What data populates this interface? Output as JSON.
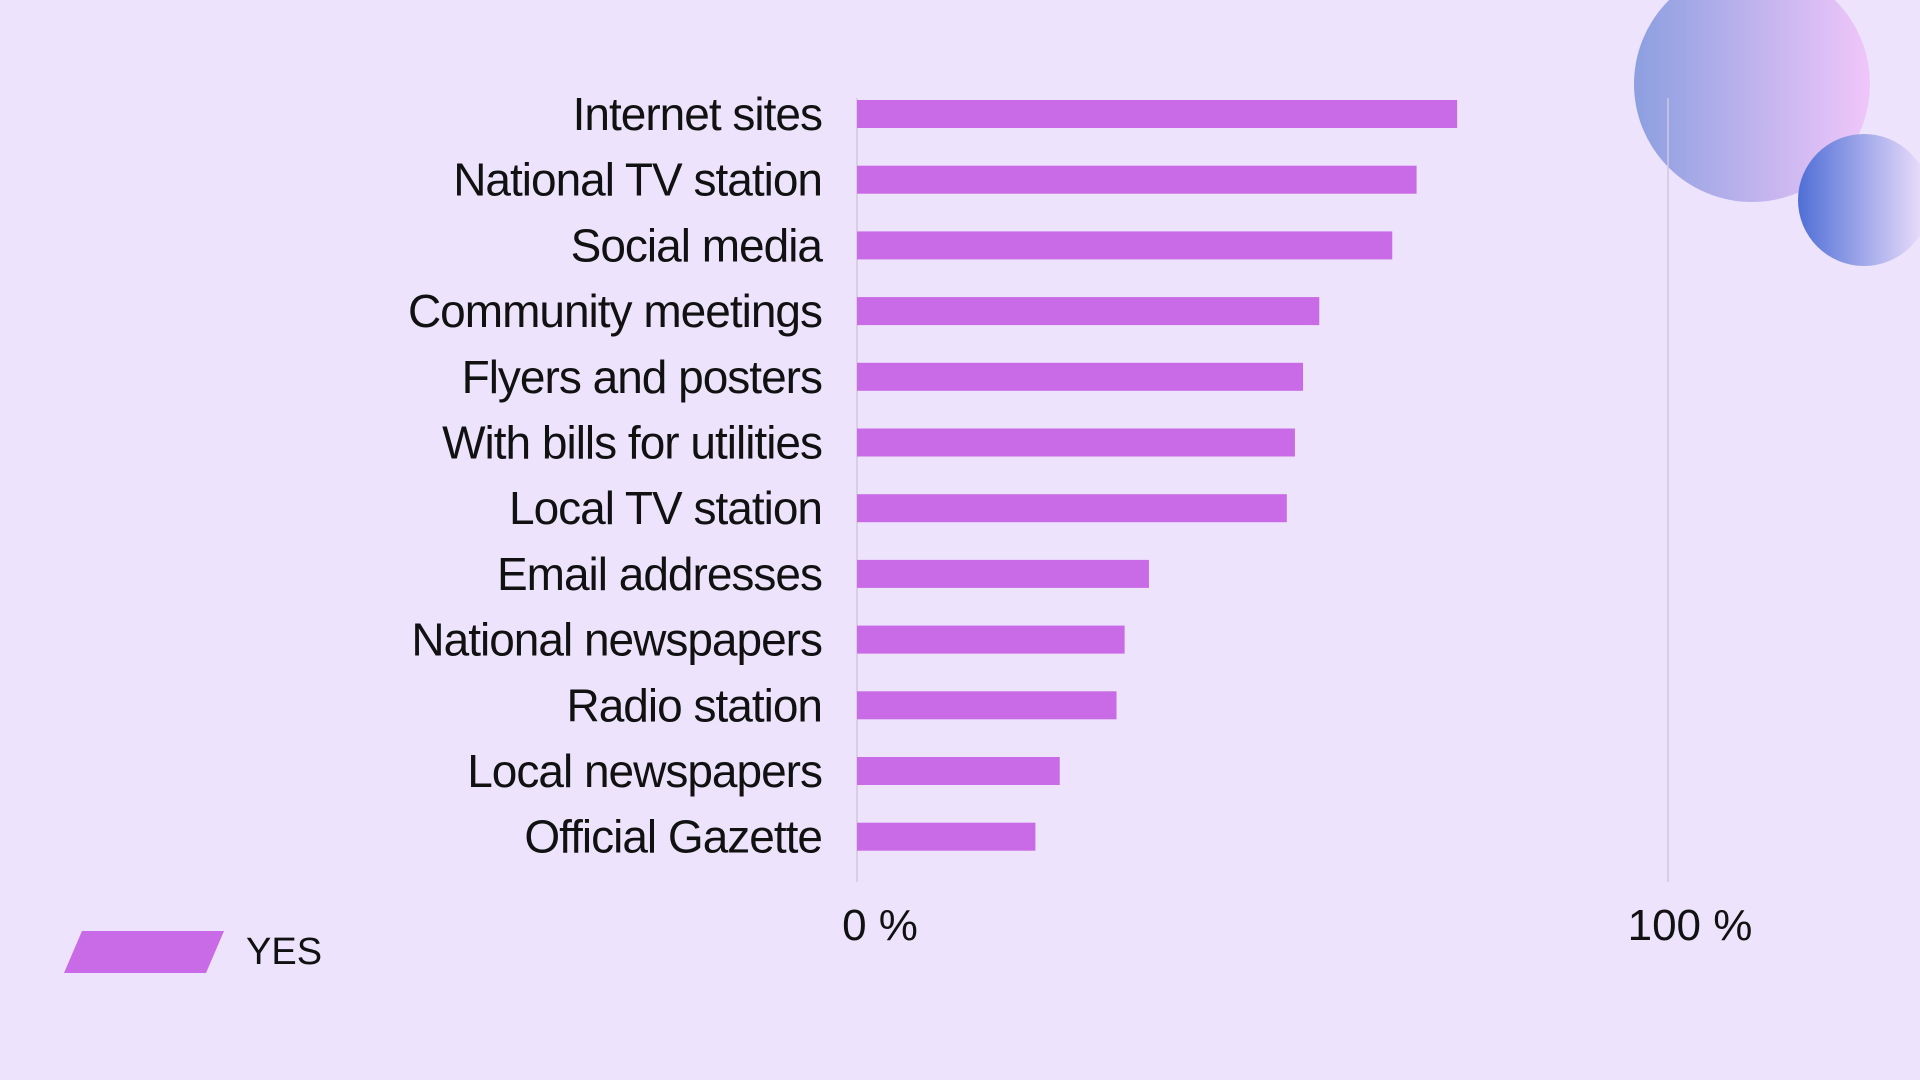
{
  "chart_data": {
    "type": "bar",
    "orientation": "horizontal",
    "categories": [
      "Internet sites",
      "National TV station",
      "Social media",
      "Community meetings",
      "Flyers and posters",
      "With bills for utilities",
      "Local TV station",
      "Email addresses",
      "National newspapers",
      "Radio station",
      "Local newspapers",
      "Official Gazette"
    ],
    "series": [
      {
        "name": "YES",
        "color": "#c96be6",
        "values": [
          74,
          69,
          66,
          57,
          55,
          54,
          53,
          36,
          33,
          32,
          25,
          22
        ]
      }
    ],
    "xlim": [
      0,
      100
    ],
    "x_ticks": [
      "0 %",
      "100 %"
    ],
    "grid": false,
    "legend_position": "bottom-left"
  },
  "colors": {
    "background": "#ede3fd",
    "bar": "#c96be6",
    "axis": "#d2c8df",
    "decor_circle_start": "#8c9fe0",
    "decor_circle_end": "#f0c6fa",
    "decor_small_circle_start": "#4f6fd6",
    "decor_small_circle_end": "#f3e2fd"
  }
}
